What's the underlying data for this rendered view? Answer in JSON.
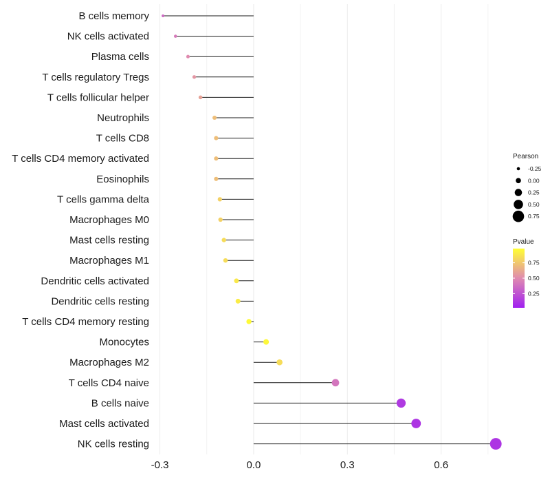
{
  "chart_data": {
    "type": "lollipop",
    "title": "",
    "xlabel": "",
    "ylabel": "",
    "xlim": [
      -0.31,
      0.79
    ],
    "xticks": [
      -0.3,
      0.0,
      0.3,
      0.6
    ],
    "xtick_labels": [
      "-0.3",
      "0.0",
      "0.3",
      "0.6"
    ],
    "grid": "vertical",
    "categories": [
      "B cells memory",
      "NK cells activated",
      "Plasma cells",
      "T cells regulatory  Tregs",
      "T cells follicular helper",
      "Neutrophils",
      "T cells CD8",
      "T cells CD4 memory activated",
      "Eosinophils",
      "T cells gamma delta",
      "Macrophages M0",
      "Mast cells resting",
      "Macrophages M1",
      "Dendritic cells activated",
      "Dendritic cells resting",
      "T cells CD4 memory resting",
      "Monocytes",
      "Macrophages M2",
      "T cells CD4 naive",
      "B cells naive",
      "Mast cells activated",
      "NK cells resting"
    ],
    "values": [
      -0.29,
      -0.25,
      -0.21,
      -0.19,
      -0.17,
      -0.125,
      -0.12,
      -0.12,
      -0.12,
      -0.108,
      -0.106,
      -0.095,
      -0.09,
      -0.055,
      -0.05,
      -0.015,
      0.04,
      0.083,
      0.262,
      0.472,
      0.52,
      0.775
    ],
    "pvalues": [
      0.35,
      0.42,
      0.5,
      0.55,
      0.6,
      0.72,
      0.72,
      0.72,
      0.72,
      0.8,
      0.8,
      0.85,
      0.85,
      0.9,
      0.92,
      0.98,
      0.97,
      0.85,
      0.4,
      0.12,
      0.1,
      0.1
    ],
    "legend": {
      "position": "right",
      "size_title": "Pearson",
      "size_breaks": [
        "-0.25",
        "0.00",
        "0.25",
        "0.50",
        "0.75"
      ],
      "size_values": [
        -0.25,
        0.0,
        0.25,
        0.5,
        0.75
      ],
      "color_title": "Pvalue",
      "color_breaks": [
        "0.75",
        "0.50",
        "0.25"
      ],
      "color_values": [
        0.75,
        0.5,
        0.25
      ],
      "color_low": "#a020f0",
      "color_mid": "#e08bb0",
      "color_high": "#ffff33"
    }
  }
}
